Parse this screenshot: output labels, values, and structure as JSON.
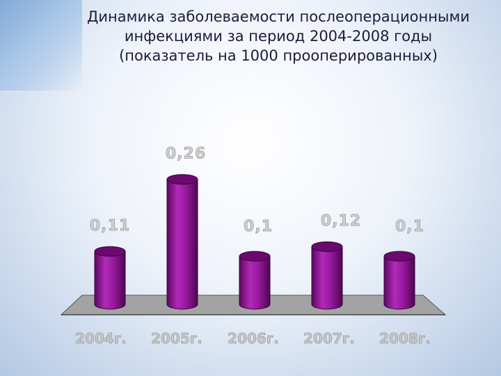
{
  "slide": {
    "title_lines": [
      "Динамика заболеваемости послеоперационными",
      "инфекциями за период 2004-2008 годы",
      "(показатель на 1000 прооперированных)"
    ]
  },
  "chart_data": {
    "type": "bar",
    "categories": [
      "2004г.",
      "2005г.",
      "2006г.",
      "2007г.",
      "2008г."
    ],
    "values": [
      0.11,
      0.26,
      0.1,
      0.12,
      0.1
    ],
    "value_labels": [
      "0,11",
      "0,26",
      "0,1",
      "0,12",
      "0,1"
    ],
    "ylim": [
      0,
      0.3
    ],
    "grid": false,
    "legend": "none",
    "colors": {
      "bar": "#8a0e8e",
      "bar_light": "#c02cc6",
      "bar_top": "#6a0a6d",
      "floor": "#a0a0a0",
      "value_label": "#cfcfcf",
      "category_label": "#c9c9c9"
    }
  }
}
